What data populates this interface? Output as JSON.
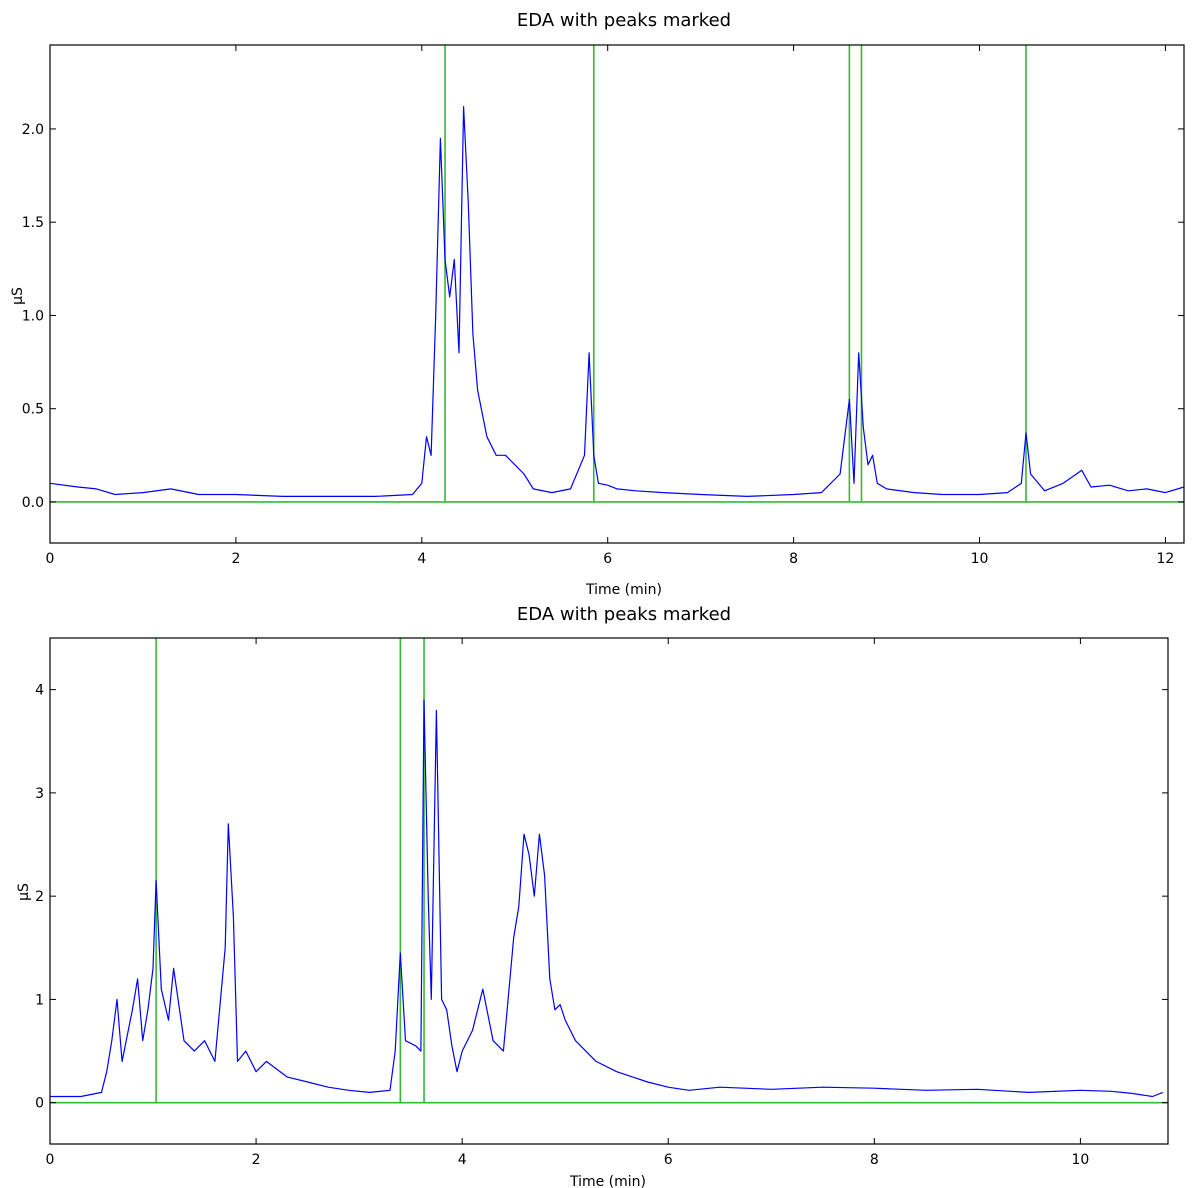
{
  "chart_data": [
    {
      "type": "line",
      "title": "EDA with peaks marked",
      "xlabel": "Time (min)",
      "ylabel": "μS",
      "xlim": [
        0,
        12.2
      ],
      "ylim": [
        -0.22,
        2.45
      ],
      "xticks": [
        0,
        2,
        4,
        6,
        8,
        10,
        12
      ],
      "yticks": [
        0.0,
        0.5,
        1.0,
        1.5,
        2.0
      ],
      "ytick_labels": [
        "0.0",
        "0.5",
        "1.0",
        "1.5",
        "2.0"
      ],
      "grid": false,
      "colors": {
        "signal": "#0000ff",
        "peaks": "#33bb33"
      },
      "series": [
        {
          "x": [
            0,
            0.3,
            0.5,
            0.7,
            1.0,
            1.3,
            1.6,
            2.0,
            2.5,
            3.0,
            3.5,
            3.9,
            4.0,
            4.05,
            4.1,
            4.15,
            4.2,
            4.25,
            4.3,
            4.35,
            4.4,
            4.45,
            4.5,
            4.55,
            4.6,
            4.7,
            4.8,
            4.9,
            5.0,
            5.1,
            5.2,
            5.4,
            5.6,
            5.75,
            5.8,
            5.85,
            5.9,
            6.0,
            6.1,
            6.3,
            6.6,
            7.0,
            7.5,
            8.0,
            8.3,
            8.5,
            8.6,
            8.65,
            8.7,
            8.75,
            8.8,
            8.85,
            8.9,
            9.0,
            9.3,
            9.6,
            10.0,
            10.3,
            10.45,
            10.5,
            10.55,
            10.6,
            10.7,
            10.9,
            11.1,
            11.2,
            11.4,
            11.6,
            11.8,
            12.0,
            12.2
          ],
          "values": [
            0.1,
            0.08,
            0.07,
            0.04,
            0.05,
            0.07,
            0.04,
            0.04,
            0.03,
            0.03,
            0.03,
            0.04,
            0.1,
            0.35,
            0.25,
            1.0,
            1.95,
            1.3,
            1.1,
            1.3,
            0.8,
            2.12,
            1.6,
            0.9,
            0.6,
            0.35,
            0.25,
            0.25,
            0.2,
            0.15,
            0.07,
            0.05,
            0.07,
            0.25,
            0.8,
            0.25,
            0.1,
            0.09,
            0.07,
            0.06,
            0.05,
            0.04,
            0.03,
            0.04,
            0.05,
            0.15,
            0.55,
            0.1,
            0.8,
            0.4,
            0.2,
            0.25,
            0.1,
            0.07,
            0.05,
            0.04,
            0.04,
            0.05,
            0.1,
            0.37,
            0.15,
            0.12,
            0.06,
            0.1,
            0.17,
            0.08,
            0.09,
            0.06,
            0.07,
            0.05,
            0.08
          ]
        }
      ],
      "peaks": [
        4.25,
        5.85,
        8.6,
        8.73,
        10.5
      ],
      "baseline": 0.0
    },
    {
      "type": "line",
      "title": "EDA with peaks marked",
      "xlabel": "Time (min)",
      "ylabel": "μS",
      "xlim": [
        0,
        10.85
      ],
      "ylim": [
        -0.4,
        4.5
      ],
      "xticks": [
        0,
        2,
        4,
        6,
        8,
        10
      ],
      "yticks": [
        0,
        1,
        2,
        3,
        4
      ],
      "ytick_labels": [
        "0",
        "1",
        "2",
        "3",
        "4"
      ],
      "grid": false,
      "colors": {
        "signal": "#0000ff",
        "peaks": "#33bb33"
      },
      "series": [
        {
          "x": [
            0,
            0.3,
            0.5,
            0.55,
            0.6,
            0.65,
            0.7,
            0.8,
            0.85,
            0.9,
            0.95,
            1.0,
            1.03,
            1.08,
            1.15,
            1.2,
            1.3,
            1.4,
            1.5,
            1.6,
            1.7,
            1.73,
            1.78,
            1.82,
            1.9,
            2.0,
            2.1,
            2.3,
            2.5,
            2.7,
            2.9,
            3.1,
            3.3,
            3.35,
            3.4,
            3.45,
            3.55,
            3.6,
            3.63,
            3.67,
            3.7,
            3.75,
            3.8,
            3.85,
            3.9,
            3.95,
            4.0,
            4.1,
            4.2,
            4.3,
            4.4,
            4.5,
            4.55,
            4.6,
            4.65,
            4.7,
            4.75,
            4.8,
            4.85,
            4.9,
            4.95,
            5.0,
            5.1,
            5.2,
            5.3,
            5.5,
            5.8,
            6.0,
            6.2,
            6.5,
            7.0,
            7.5,
            8.0,
            8.5,
            9.0,
            9.5,
            10.0,
            10.3,
            10.5,
            10.7,
            10.8
          ],
          "values": [
            0.06,
            0.06,
            0.1,
            0.3,
            0.6,
            1.0,
            0.4,
            0.9,
            1.2,
            0.6,
            0.9,
            1.3,
            2.15,
            1.1,
            0.8,
            1.3,
            0.6,
            0.5,
            0.6,
            0.4,
            1.5,
            2.7,
            1.8,
            0.4,
            0.5,
            0.3,
            0.4,
            0.25,
            0.2,
            0.15,
            0.12,
            0.1,
            0.12,
            0.5,
            1.45,
            0.6,
            0.55,
            0.5,
            3.9,
            2.0,
            1.0,
            3.8,
            1.0,
            0.9,
            0.55,
            0.3,
            0.5,
            0.7,
            1.1,
            0.6,
            0.5,
            1.6,
            1.9,
            2.6,
            2.4,
            2.0,
            2.6,
            2.2,
            1.2,
            0.9,
            0.95,
            0.8,
            0.6,
            0.5,
            0.4,
            0.3,
            0.2,
            0.15,
            0.12,
            0.15,
            0.13,
            0.15,
            0.14,
            0.12,
            0.13,
            0.1,
            0.12,
            0.11,
            0.09,
            0.06,
            0.1
          ]
        }
      ],
      "peaks": [
        1.03,
        3.4,
        3.63
      ],
      "baseline": 0.0
    }
  ]
}
